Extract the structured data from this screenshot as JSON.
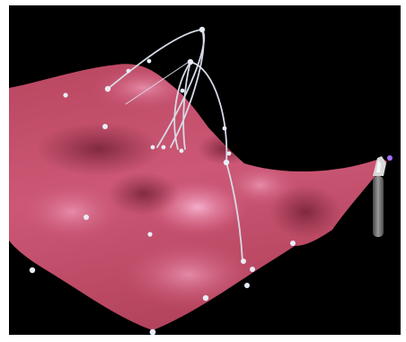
{
  "viewport": {
    "background": "#000000",
    "surface_color": "#c8506e",
    "surface_highlight": "#f4a3c2",
    "surface_shadow": "#7a2338",
    "control_point_color": "#e8ecf6",
    "curve_color": "#d6dae6",
    "stylus_body_color": "#6c6c6c",
    "stylus_tip_color": "#a070ff"
  },
  "scene_objects": {
    "surface": "deformable-surface",
    "control_points": "control-point-icon",
    "tool": "stylus-icon"
  }
}
